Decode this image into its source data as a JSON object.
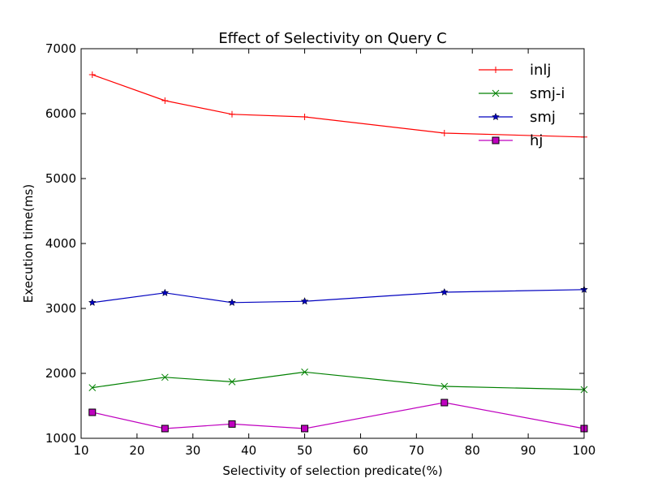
{
  "chart_data": {
    "type": "line",
    "title": "Effect of Selectivity on Query C",
    "xlabel": "Selectivity of selection predicate(%)",
    "ylabel": "Execution time(ms)",
    "xlim": [
      10,
      100
    ],
    "ylim": [
      1000,
      7000
    ],
    "x_ticks": [
      10,
      20,
      30,
      40,
      50,
      60,
      70,
      80,
      90,
      100
    ],
    "y_ticks": [
      1000,
      2000,
      3000,
      4000,
      5000,
      6000,
      7000
    ],
    "grid": false,
    "legend_position": "top-right",
    "x": [
      12,
      25,
      37,
      50,
      75,
      100
    ],
    "series": [
      {
        "name": "inlj",
        "color": "#ff0000",
        "marker": "plus",
        "values": [
          6600,
          6200,
          5990,
          5950,
          5700,
          5640
        ]
      },
      {
        "name": "smj-i",
        "color": "#008000",
        "marker": "x",
        "values": [
          1780,
          1940,
          1870,
          2020,
          1800,
          1750
        ]
      },
      {
        "name": "smj",
        "color": "#0000bf",
        "marker": "star",
        "values": [
          3090,
          3240,
          3090,
          3110,
          3250,
          3290
        ]
      },
      {
        "name": "hj",
        "color": "#bf00bf",
        "marker": "square",
        "values": [
          1400,
          1150,
          1220,
          1150,
          1550,
          1150
        ]
      }
    ]
  }
}
